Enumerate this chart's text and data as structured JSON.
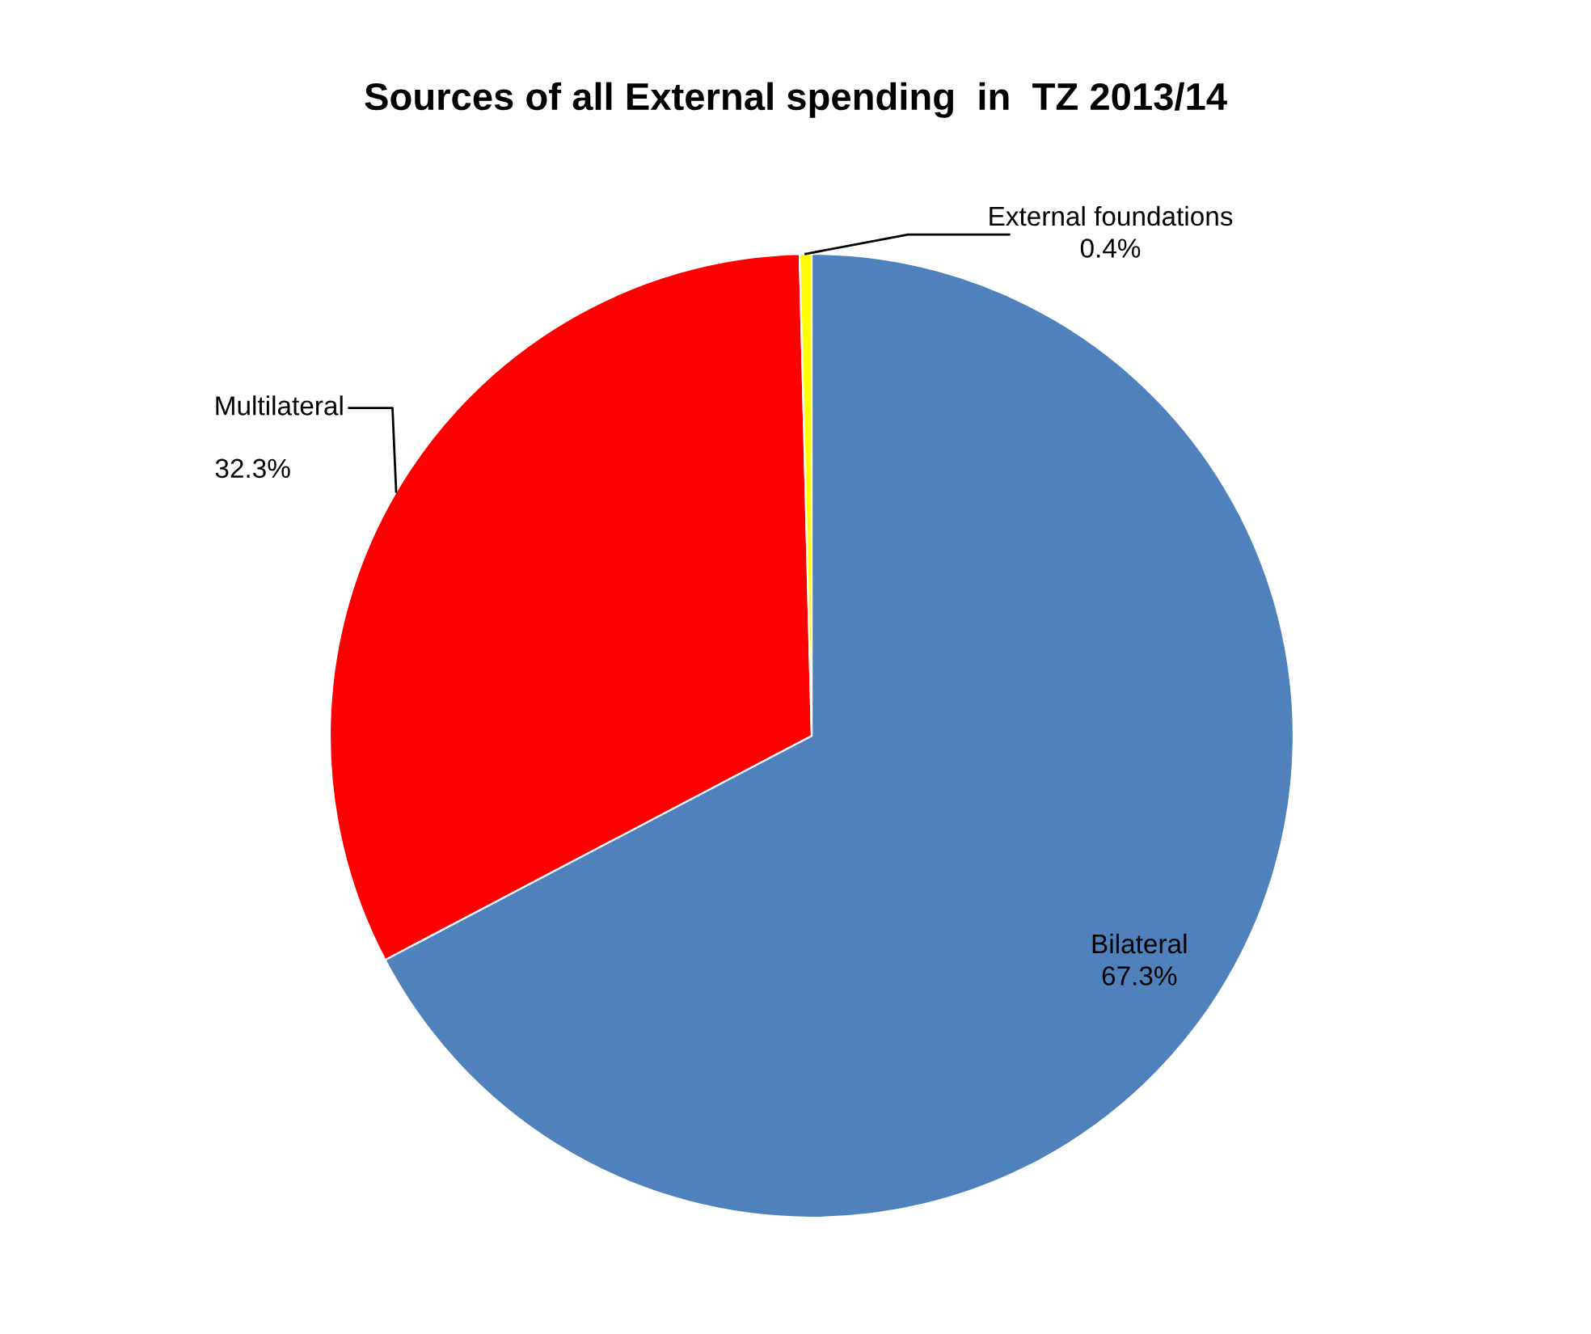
{
  "chart_data": {
    "type": "pie",
    "title": "Sources of all External spending  in  TZ 2013/14",
    "categories": [
      "Bilateral",
      "Multilateral",
      "External foundations"
    ],
    "values": [
      67.3,
      32.3,
      0.4
    ],
    "colors": [
      "#4f81bd",
      "#ff0000",
      "#ffff00"
    ],
    "value_labels": [
      "67.3%",
      "32.3%",
      "0.4%"
    ]
  }
}
